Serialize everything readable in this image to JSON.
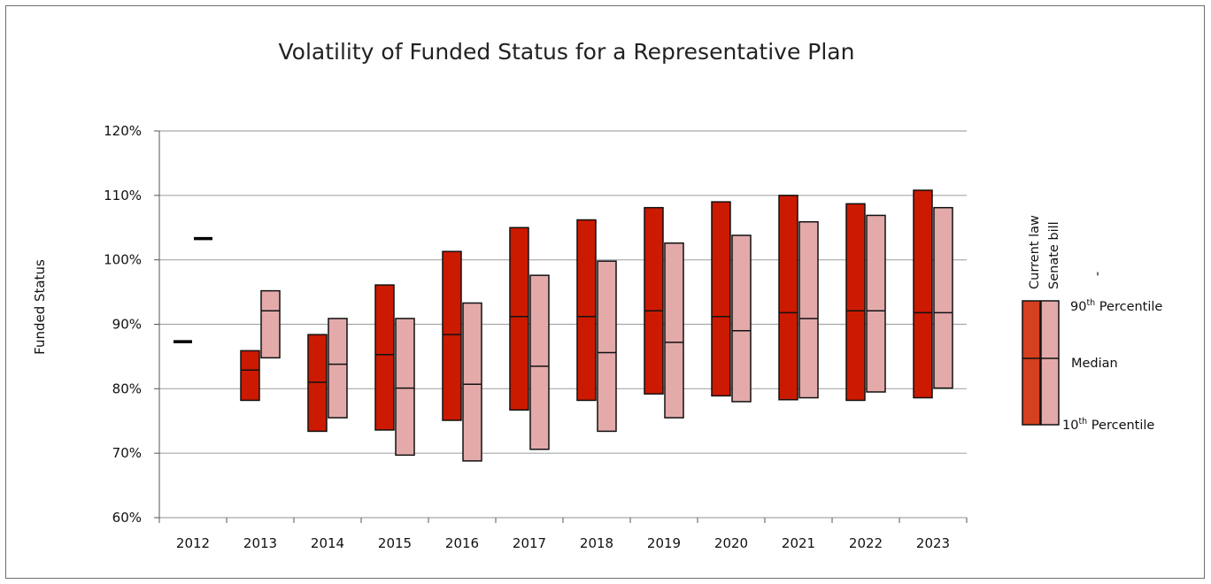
{
  "chart_data": {
    "type": "box",
    "title": "Volatility of Funded Status for a Representative Plan",
    "ylabel": "Funded Status",
    "xlabel": "",
    "ylim": [
      60,
      120
    ],
    "yticks": [
      "60%",
      "70%",
      "80%",
      "90%",
      "100%",
      "110%",
      "120%"
    ],
    "ytick_values": [
      60,
      70,
      80,
      90,
      100,
      110,
      120
    ],
    "grid": true,
    "categories": [
      "2012",
      "2013",
      "2014",
      "2015",
      "2016",
      "2017",
      "2018",
      "2019",
      "2020",
      "2021",
      "2022",
      "2023"
    ],
    "series": [
      {
        "name": "Current law",
        "color": "#cc1a00",
        "p10": [
          87.3,
          78.2,
          73.4,
          73.6,
          75.1,
          76.7,
          78.2,
          79.2,
          78.9,
          78.3,
          78.2,
          78.6
        ],
        "median": [
          87.3,
          82.9,
          81.0,
          85.3,
          88.4,
          91.2,
          91.2,
          92.1,
          91.2,
          91.8,
          92.1,
          91.8
        ],
        "p90": [
          87.3,
          85.9,
          88.4,
          96.1,
          101.3,
          105.0,
          106.2,
          108.1,
          109.0,
          110.0,
          108.7,
          110.8
        ]
      },
      {
        "name": "Senate bill",
        "color": "#e4aaaa",
        "p10": [
          103.3,
          84.8,
          75.5,
          69.7,
          68.8,
          70.6,
          73.4,
          75.5,
          78.0,
          78.6,
          79.5,
          80.1
        ],
        "median": [
          103.3,
          92.1,
          83.8,
          80.1,
          80.7,
          83.5,
          85.6,
          87.2,
          89.0,
          90.9,
          92.1,
          91.8
        ],
        "p90": [
          103.3,
          95.2,
          90.9,
          90.9,
          93.3,
          97.6,
          99.8,
          102.6,
          103.8,
          105.9,
          106.9,
          108.1
        ]
      }
    ],
    "legend": {
      "placement": "right",
      "series_labels": [
        "Current law",
        "Senate bill"
      ],
      "p90_label": "90th Percentile",
      "p90_sup": "th",
      "p90_base": "90",
      "p90_rest": " Percentile",
      "median_label": "Median",
      "p10_base": "10",
      "p10_sup": "th",
      "p10_rest": " Percentile",
      "current_color": "#d44020",
      "senate_color": "#e4aaaa",
      "stray_mark": "'"
    }
  }
}
